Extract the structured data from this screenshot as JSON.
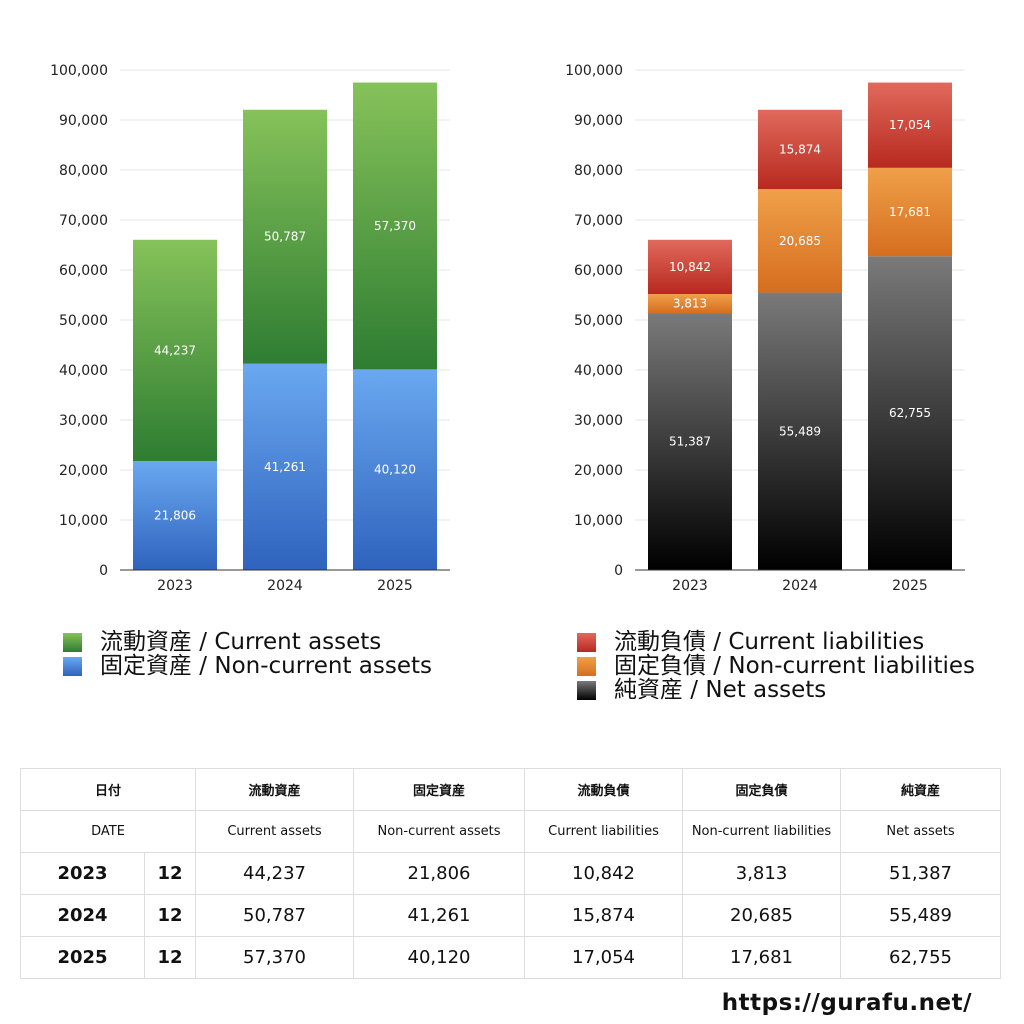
{
  "colors": {
    "current_assets": "#4a9a3e",
    "non_current_assets": "#4d8fe0",
    "current_liabilities": "#d0443a",
    "non_current_liabilities": "#e07d2c",
    "net_assets": "#3a3a3a"
  },
  "chart_data": [
    {
      "type": "bar",
      "stacked": true,
      "categories": [
        "2023",
        "2024",
        "2025"
      ],
      "ylim": [
        0,
        100000
      ],
      "yticks": [
        "0",
        "10,000",
        "20,000",
        "30,000",
        "40,000",
        "50,000",
        "60,000",
        "70,000",
        "80,000",
        "90,000",
        "100,000"
      ],
      "grid": true,
      "series": [
        {
          "name": "固定資産 / Non-current assets",
          "values": [
            21806,
            41261,
            40120
          ],
          "labels": [
            "21,806",
            "41,261",
            "40,120"
          ],
          "color": "blue"
        },
        {
          "name": "流動資産 / Current assets",
          "values": [
            44237,
            50787,
            57370
          ],
          "labels": [
            "44,237",
            "50,787",
            "57,370"
          ],
          "color": "green"
        }
      ],
      "legend": [
        "流動資産 / Current assets",
        "固定資産 / Non-current assets"
      ]
    },
    {
      "type": "bar",
      "stacked": true,
      "categories": [
        "2023",
        "2024",
        "2025"
      ],
      "ylim": [
        0,
        100000
      ],
      "yticks": [
        "0",
        "10,000",
        "20,000",
        "30,000",
        "40,000",
        "50,000",
        "60,000",
        "70,000",
        "80,000",
        "90,000",
        "100,000"
      ],
      "grid": true,
      "series": [
        {
          "name": "純資産 / Net assets",
          "values": [
            51387,
            55489,
            62755
          ],
          "labels": [
            "51,387",
            "55,489",
            "62,755"
          ],
          "color": "black"
        },
        {
          "name": "固定負債 / Non-current liabilities",
          "values": [
            3813,
            20685,
            17681
          ],
          "labels": [
            "3,813",
            "20,685",
            "17,681"
          ],
          "color": "orange"
        },
        {
          "name": "流動負債 / Current liabilities",
          "values": [
            10842,
            15874,
            17054
          ],
          "labels": [
            "10,842",
            "15,874",
            "17,054"
          ],
          "color": "red"
        }
      ],
      "legend": [
        "流動負債 / Current liabilities",
        "固定負債 / Non-current liabilities",
        "純資産 / Net assets"
      ]
    }
  ],
  "table": {
    "header_jp": [
      "日付",
      "流動資産",
      "固定資産",
      "流動負債",
      "固定負債",
      "純資産"
    ],
    "header_en": [
      "DATE",
      "Current assets",
      "Non-current assets",
      "Current liabilities",
      "Non-current liabilities",
      "Net assets"
    ],
    "rows": [
      {
        "year": "2023",
        "month": "12",
        "values": [
          "44,237",
          "21,806",
          "10,842",
          "3,813",
          "51,387"
        ]
      },
      {
        "year": "2024",
        "month": "12",
        "values": [
          "50,787",
          "41,261",
          "15,874",
          "20,685",
          "55,489"
        ]
      },
      {
        "year": "2025",
        "month": "12",
        "values": [
          "57,370",
          "40,120",
          "17,054",
          "17,681",
          "62,755"
        ]
      }
    ]
  },
  "footer": {
    "url": "https://gurafu.net/"
  }
}
